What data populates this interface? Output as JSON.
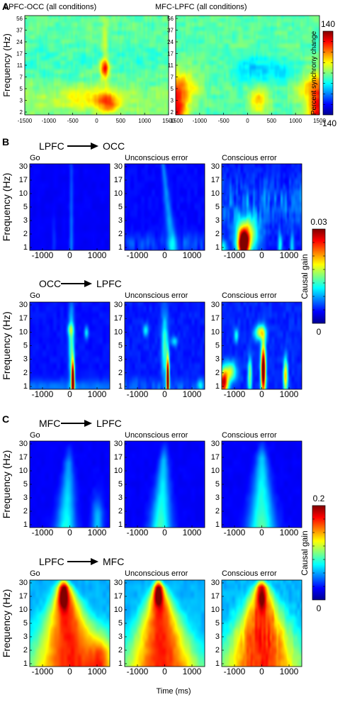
{
  "panel_letters": [
    "A",
    "B",
    "C"
  ],
  "time_xlabel": "Time (ms)",
  "colormap": "jet",
  "chart_data": [
    {
      "id": "A-left",
      "type": "heatmap",
      "title": "LPFC-OCC (all conditions)",
      "ylabel": "Frequency (Hz)",
      "x_ticks": [
        "-1500",
        "-1000",
        "-500",
        "0",
        "500",
        "1000",
        "1500"
      ],
      "y_ticks": [
        "56",
        "37",
        "24",
        "17",
        "11",
        "7",
        "5",
        "3",
        "2"
      ],
      "xlim": [
        -1500,
        1500
      ],
      "ylim_hz": [
        2,
        56
      ],
      "colorbar": {
        "label": "Percent synchrony change",
        "max": "140",
        "min": "-140",
        "range": [
          -140,
          140
        ]
      },
      "features": [
        {
          "note": "synchrony increase",
          "time_ms": 180,
          "freq_hz": 9,
          "value": 90
        },
        {
          "note": "synchrony increase",
          "time_ms": 300,
          "freq_hz": 3,
          "value": 75
        },
        {
          "note": "broad low-frequency increase",
          "time_ms": -200,
          "freq_hz": 3.5,
          "value": 35
        }
      ]
    },
    {
      "id": "A-right",
      "type": "heatmap",
      "title": "MFC-LPFC (all conditions)",
      "x_ticks": [
        "-1500",
        "-1000",
        "-500",
        "0",
        "500",
        "1000",
        "1500"
      ],
      "y_ticks": [
        "56",
        "37",
        "24",
        "17",
        "11",
        "7",
        "5",
        "3",
        "2"
      ],
      "xlim": [
        -1500,
        1500
      ],
      "ylim_hz": [
        2,
        56
      ],
      "features": [
        {
          "note": "edge increase",
          "time_ms": -1450,
          "freq_hz": 2.5,
          "value": 120
        },
        {
          "note": "edge increase",
          "time_ms": 1450,
          "freq_hz": 2.5,
          "value": 120
        },
        {
          "note": "synchrony increase",
          "time_ms": 300,
          "freq_hz": 3,
          "value": 60
        },
        {
          "note": "synchrony decrease",
          "time_ms": 200,
          "freq_hz": 10,
          "value": -45
        }
      ]
    },
    {
      "id": "B-top",
      "type": "heatmap",
      "direction": {
        "from": "LPFC",
        "to": "OCC"
      },
      "ylabel": "Frequency (Hz)",
      "panels": [
        "Go",
        "Unconscious error",
        "Conscious error"
      ],
      "x_ticks": [
        "-1000",
        "0",
        "1000"
      ],
      "y_ticks": [
        "30",
        "17",
        "10",
        "5",
        "3",
        "2",
        "1"
      ],
      "xlim": [
        -1400,
        1400
      ],
      "ylim_hz": [
        1,
        45
      ],
      "colorbar": {
        "label": "Causal gain",
        "max": "0.03",
        "min": "0",
        "range": [
          0,
          0.03
        ]
      },
      "values_per_panel": [
        {
          "panel": "Go",
          "peak_time_ms": 50,
          "peak_value": 0.004
        },
        {
          "panel": "Unconscious error",
          "peak_time_ms": 150,
          "peak_value": 0.009
        },
        {
          "panel": "Conscious error",
          "peak_time_ms": -650,
          "peak_freq_hz": 2,
          "peak_value": 0.03
        }
      ]
    },
    {
      "id": "B-bottom",
      "type": "heatmap",
      "direction": {
        "from": "OCC",
        "to": "LPFC"
      },
      "ylabel": "Frequency (Hz)",
      "panels": [
        "Go",
        "Unconscious error",
        "Conscious error"
      ],
      "x_ticks": [
        "-1000",
        "0",
        "1000"
      ],
      "y_ticks": [
        "30",
        "17",
        "10",
        "5",
        "3",
        "2",
        "1"
      ],
      "xlim": [
        -1400,
        1400
      ],
      "ylim_hz": [
        1,
        45
      ],
      "values_per_panel": [
        {
          "panel": "Go",
          "peak_time_ms": 110,
          "peak_freq_hz": 2,
          "peak_value": 0.03
        },
        {
          "panel": "Unconscious error",
          "peak_time_ms": 110,
          "peak_freq_hz": 2,
          "peak_value": 0.03
        },
        {
          "panel": "Conscious error",
          "peak_time_ms": 110,
          "peak_freq_hz": 2,
          "peak_value": 0.03
        }
      ]
    },
    {
      "id": "C-top",
      "type": "heatmap",
      "direction": {
        "from": "MFC",
        "to": "LPFC"
      },
      "ylabel": "Frequency (Hz)",
      "panels": [
        "Go",
        "Unconscious error",
        "Conscious error"
      ],
      "x_ticks": [
        "-1000",
        "0",
        "1000"
      ],
      "y_ticks": [
        "30",
        "17",
        "10",
        "5",
        "3",
        "2",
        "1"
      ],
      "xlim": [
        -1400,
        1400
      ],
      "ylim_hz": [
        1,
        45
      ],
      "colorbar": {
        "label": "Causal gain",
        "max": "0.2",
        "min": "0",
        "range": [
          0,
          0.2
        ]
      },
      "values_per_panel": [
        {
          "panel": "Go",
          "peak_time_ms": -150,
          "peak_value": 0.06
        },
        {
          "panel": "Unconscious error",
          "peak_time_ms": -150,
          "peak_value": 0.07
        },
        {
          "panel": "Conscious error",
          "peak_time_ms": -50,
          "peak_value": 0.08
        }
      ]
    },
    {
      "id": "C-bottom",
      "type": "heatmap",
      "direction": {
        "from": "LPFC",
        "to": "MFC"
      },
      "ylabel": "Frequency (Hz)",
      "panels": [
        "Go",
        "Unconscious error",
        "Conscious error"
      ],
      "x_ticks": [
        "-1000",
        "0",
        "1000"
      ],
      "y_ticks": [
        "30",
        "17",
        "10",
        "5",
        "3",
        "2",
        "1"
      ],
      "xlim": [
        -1400,
        1400
      ],
      "ylim_hz": [
        1,
        45
      ],
      "values_per_panel": [
        {
          "panel": "Go",
          "peak_time_ms": -150,
          "peak_value": 0.2
        },
        {
          "panel": "Unconscious error",
          "peak_time_ms": -150,
          "peak_value": 0.19
        },
        {
          "panel": "Conscious error",
          "peak_time_ms": 0,
          "peak_value": 0.19
        }
      ]
    }
  ]
}
